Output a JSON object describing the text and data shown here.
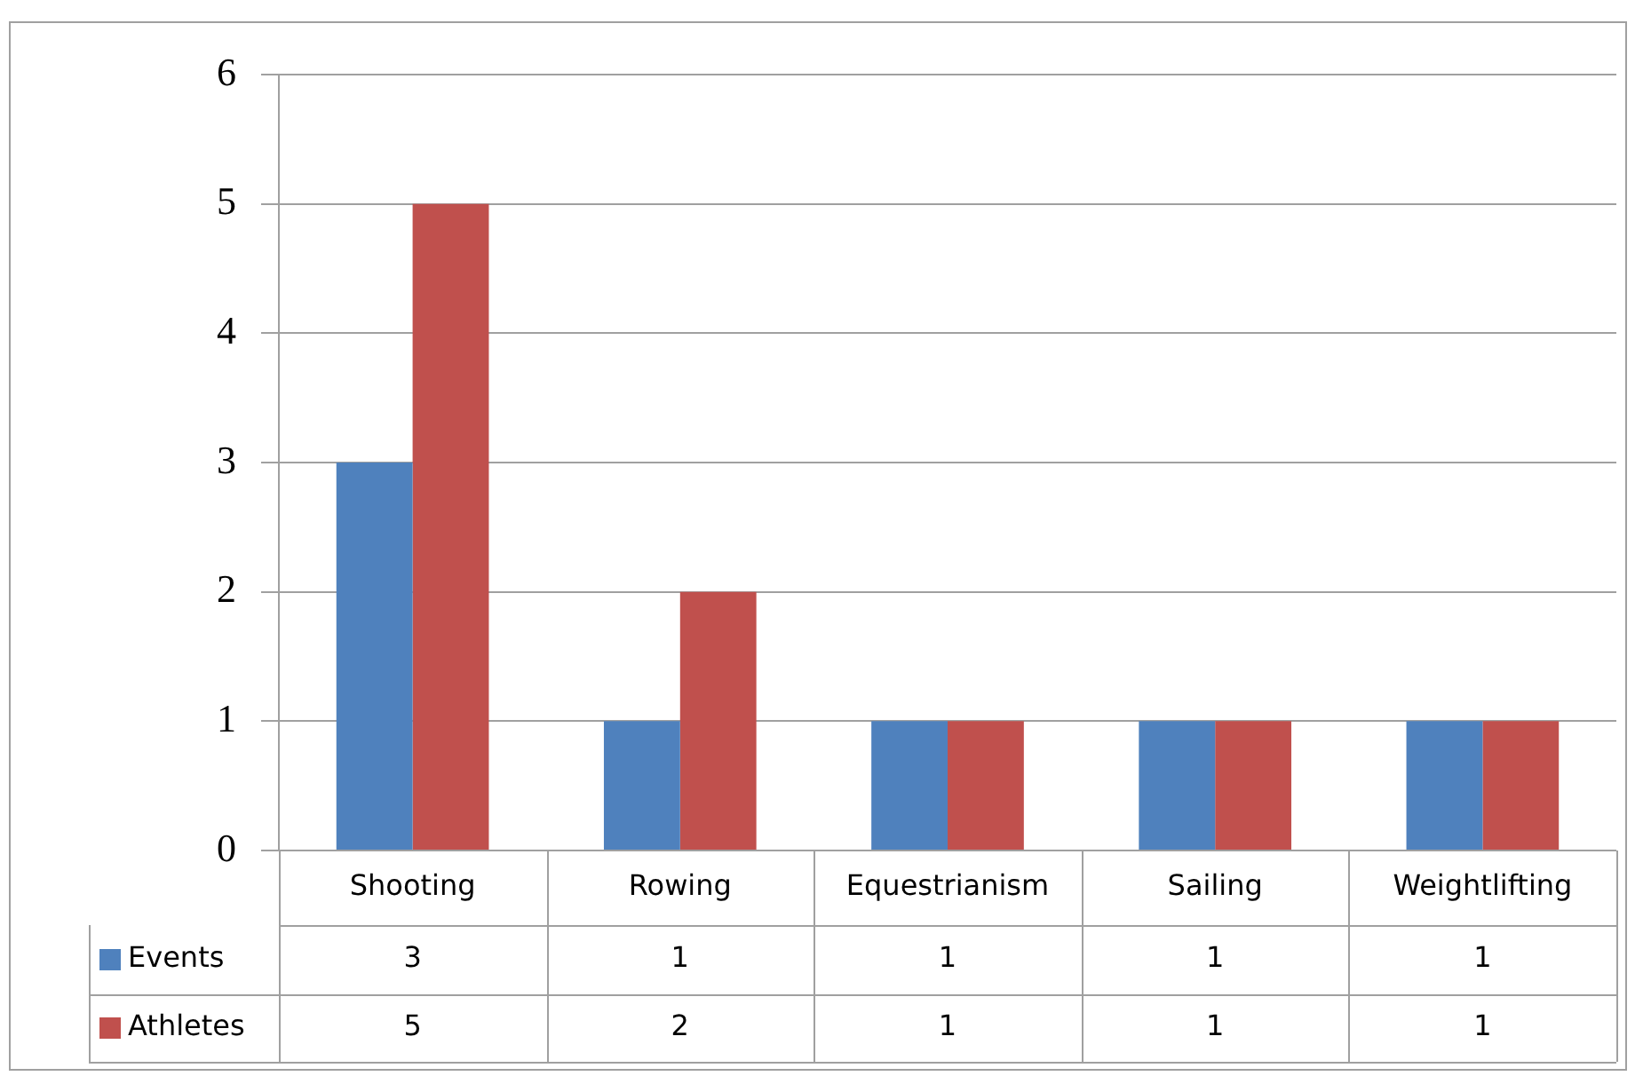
{
  "chart_data": {
    "type": "bar",
    "categories": [
      "Shooting",
      "Rowing",
      "Equestrianism",
      "Sailing",
      "Weightlifting"
    ],
    "series": [
      {
        "name": "Events",
        "color": "#4f81bd",
        "values": [
          3,
          1,
          1,
          1,
          1
        ]
      },
      {
        "name": "Athletes",
        "color": "#c0504d",
        "values": [
          5,
          2,
          1,
          1,
          1
        ]
      }
    ],
    "ylim": [
      0,
      6
    ],
    "yticks": [
      0,
      1,
      2,
      3,
      4,
      5,
      6
    ],
    "grid": "y",
    "legend": "bottom",
    "data_labels": true
  }
}
